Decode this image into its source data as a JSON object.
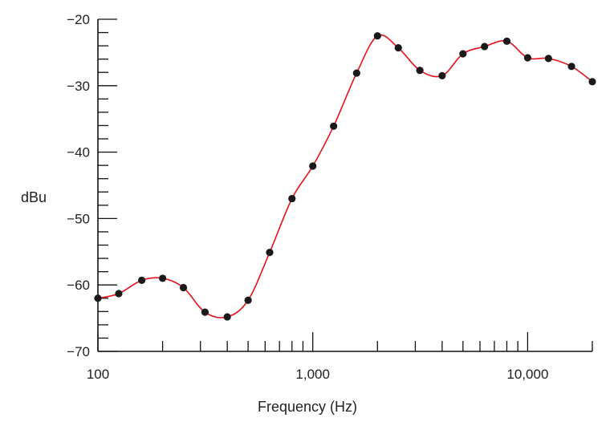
{
  "chart_data": {
    "type": "line",
    "xlabel": "Frequency (Hz)",
    "ylabel": "dBu",
    "xscale": "log",
    "xlim": [
      100,
      20000
    ],
    "ylim": [
      -70,
      -20
    ],
    "x_tick_labels": [
      {
        "value": 100,
        "label": "100"
      },
      {
        "value": 1000,
        "label": "1,000"
      },
      {
        "value": 10000,
        "label": "10,000"
      }
    ],
    "y_tick_labels": [
      {
        "value": -20,
        "label": "−20"
      },
      {
        "value": -30,
        "label": "−30"
      },
      {
        "value": -40,
        "label": "−40"
      },
      {
        "value": -50,
        "label": "−50"
      },
      {
        "value": -60,
        "label": "−60"
      },
      {
        "value": -70,
        "label": "−70"
      }
    ],
    "grid": false,
    "line_color": "#e8101a",
    "marker_color": "#1a1a1a",
    "series": [
      {
        "x": [
          100,
          125,
          160,
          200,
          250,
          315,
          400,
          500,
          630,
          800,
          1000,
          1250,
          1600,
          2000,
          2500,
          3150,
          4000,
          5000,
          6300,
          8000,
          10000,
          12500,
          16000,
          20000
        ],
        "y": [
          -62,
          -61.3,
          -59.3,
          -59,
          -60.4,
          -64.1,
          -64.8,
          -62.3,
          -55.1,
          -47,
          -42.1,
          -36.1,
          -28.1,
          -22.5,
          -24.3,
          -27.7,
          -28.5,
          -25.2,
          -24.1,
          -23.3,
          -25.8,
          -25.9,
          -27.1,
          -29.4
        ]
      }
    ]
  }
}
